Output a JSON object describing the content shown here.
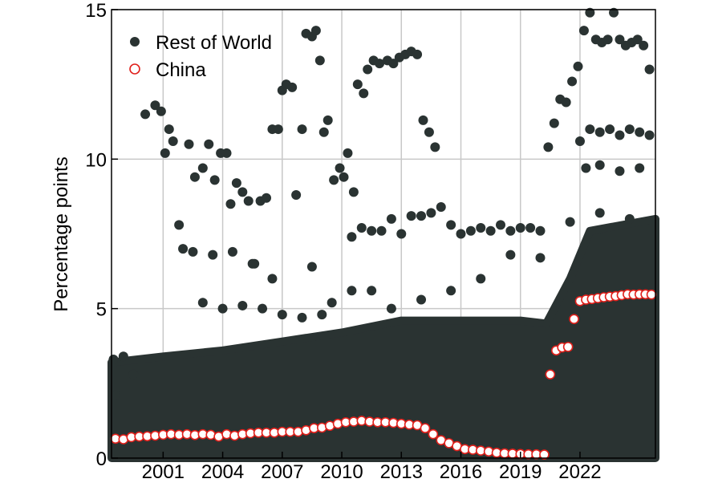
{
  "chart_data": {
    "type": "scatter",
    "title": "",
    "xlabel": "",
    "ylabel": "Percentage points",
    "xlim": [
      1998.4,
      2025.8
    ],
    "ylim": [
      0,
      15
    ],
    "x_ticks": [
      2001,
      2004,
      2007,
      2010,
      2013,
      2016,
      2019,
      2022
    ],
    "x_tick_labels": [
      "2001",
      "2004",
      "2007",
      "2010",
      "2013",
      "2016",
      "2019",
      "2022"
    ],
    "y_ticks": [
      0,
      5,
      10,
      15
    ],
    "y_tick_labels": [
      "0",
      "5",
      "10",
      "15"
    ],
    "grid": true,
    "legend_position": "top-left",
    "series": [
      {
        "name": "Rest of World",
        "marker": "filled-circle",
        "color": "#2a3332",
        "points": [
          [
            1998.5,
            3.3
          ],
          [
            1998.6,
            2.1
          ],
          [
            1999,
            3.4
          ],
          [
            1999.5,
            2.8
          ],
          [
            2000.1,
            11.5
          ],
          [
            2000.6,
            11.8
          ],
          [
            2000.9,
            11.6
          ],
          [
            2001.1,
            10.2
          ],
          [
            2001.3,
            11.0
          ],
          [
            2001.5,
            10.6
          ],
          [
            2001.8,
            7.8
          ],
          [
            2002.0,
            7.0
          ],
          [
            2002.3,
            10.5
          ],
          [
            2002.6,
            9.4
          ],
          [
            2003.0,
            9.7
          ],
          [
            2003.3,
            10.5
          ],
          [
            2003.6,
            9.3
          ],
          [
            2003.9,
            10.2
          ],
          [
            2004.2,
            10.2
          ],
          [
            2004.4,
            8.5
          ],
          [
            2004.7,
            9.2
          ],
          [
            2005.0,
            8.9
          ],
          [
            2005.3,
            8.6
          ],
          [
            2005.6,
            6.5
          ],
          [
            2005.9,
            8.6
          ],
          [
            2006.2,
            8.7
          ],
          [
            2006.5,
            11.0
          ],
          [
            2006.8,
            11.0
          ],
          [
            2007.0,
            12.3
          ],
          [
            2007.2,
            12.5
          ],
          [
            2007.5,
            12.4
          ],
          [
            2007.7,
            8.8
          ],
          [
            2008.0,
            11.0
          ],
          [
            2008.2,
            14.2
          ],
          [
            2008.5,
            14.1
          ],
          [
            2008.7,
            14.3
          ],
          [
            2008.9,
            13.3
          ],
          [
            2009.1,
            10.9
          ],
          [
            2009.3,
            11.3
          ],
          [
            2009.6,
            9.3
          ],
          [
            2009.9,
            9.7
          ],
          [
            2010.1,
            9.4
          ],
          [
            2010.3,
            10.2
          ],
          [
            2010.6,
            8.9
          ],
          [
            2010.8,
            12.5
          ],
          [
            2011.1,
            12.2
          ],
          [
            2011.3,
            13.0
          ],
          [
            2011.6,
            13.3
          ],
          [
            2011.9,
            13.2
          ],
          [
            2012.3,
            13.3
          ],
          [
            2012.6,
            13.2
          ],
          [
            2012.9,
            13.4
          ],
          [
            2013.2,
            13.5
          ],
          [
            2013.5,
            13.6
          ],
          [
            2013.8,
            13.5
          ],
          [
            2014.1,
            11.3
          ],
          [
            2014.4,
            10.9
          ],
          [
            2014.7,
            10.4
          ],
          [
            2010.5,
            7.4
          ],
          [
            2011.0,
            7.7
          ],
          [
            2011.5,
            7.6
          ],
          [
            2012.0,
            7.6
          ],
          [
            2012.5,
            8.0
          ],
          [
            2013.0,
            7.5
          ],
          [
            2013.5,
            8.1
          ],
          [
            2014.0,
            8.1
          ],
          [
            2014.5,
            8.2
          ],
          [
            2015.0,
            8.4
          ],
          [
            2015.5,
            7.8
          ],
          [
            2016.0,
            7.5
          ],
          [
            2016.5,
            7.6
          ],
          [
            2017.0,
            7.7
          ],
          [
            2017.5,
            7.6
          ],
          [
            2018.0,
            7.8
          ],
          [
            2018.5,
            7.6
          ],
          [
            2019.0,
            7.7
          ],
          [
            2019.5,
            7.7
          ],
          [
            2020.0,
            7.6
          ],
          [
            2020.4,
            10.4
          ],
          [
            2020.7,
            11.2
          ],
          [
            2021.0,
            12.0
          ],
          [
            2021.3,
            11.9
          ],
          [
            2021.6,
            12.6
          ],
          [
            2021.9,
            13.1
          ],
          [
            2022.2,
            14.3
          ],
          [
            2022.5,
            14.9
          ],
          [
            2022.8,
            14.0
          ],
          [
            2023.1,
            13.9
          ],
          [
            2023.4,
            14.0
          ],
          [
            2023.7,
            14.9
          ],
          [
            2024.0,
            14.0
          ],
          [
            2024.3,
            13.8
          ],
          [
            2024.6,
            13.9
          ],
          [
            2024.9,
            14.0
          ],
          [
            2025.2,
            13.8
          ],
          [
            2025.5,
            13.0
          ],
          [
            2022.0,
            10.6
          ],
          [
            2022.5,
            11.0
          ],
          [
            2023.0,
            10.9
          ],
          [
            2023.5,
            11.0
          ],
          [
            2024.0,
            10.8
          ],
          [
            2024.5,
            11.0
          ],
          [
            2025.0,
            10.9
          ],
          [
            2025.5,
            10.8
          ],
          [
            2022.3,
            9.7
          ],
          [
            2023.0,
            9.8
          ],
          [
            2024.0,
            9.6
          ],
          [
            2025.0,
            9.7
          ],
          [
            2002.5,
            6.9
          ],
          [
            2003.5,
            6.8
          ],
          [
            2004.5,
            6.9
          ],
          [
            2005.5,
            6.5
          ],
          [
            2006.5,
            6.0
          ],
          [
            2008.5,
            6.4
          ],
          [
            2009.5,
            5.2
          ],
          [
            2010.5,
            5.6
          ],
          [
            2011.5,
            5.6
          ],
          [
            2003.0,
            5.2
          ],
          [
            2004.0,
            5.0
          ],
          [
            2005.0,
            5.1
          ],
          [
            2006.0,
            5.0
          ],
          [
            2007.0,
            4.8
          ],
          [
            2008.0,
            4.7
          ],
          [
            2009.0,
            4.8
          ],
          [
            2012.5,
            5.0
          ],
          [
            2014.0,
            5.3
          ],
          [
            2015.5,
            5.6
          ],
          [
            2017.0,
            6.0
          ],
          [
            2018.5,
            6.8
          ],
          [
            2020.0,
            6.7
          ],
          [
            2021.5,
            7.9
          ],
          [
            2023.0,
            8.2
          ],
          [
            2024.5,
            8.0
          ]
        ]
      },
      {
        "name": "China",
        "marker": "open-circle",
        "color": "#e0201b",
        "points": [
          [
            1998.6,
            0.65
          ],
          [
            1999.0,
            0.63
          ],
          [
            1999.4,
            0.7
          ],
          [
            1999.8,
            0.72
          ],
          [
            2000.2,
            0.73
          ],
          [
            2000.6,
            0.75
          ],
          [
            2001.0,
            0.78
          ],
          [
            2001.4,
            0.8
          ],
          [
            2001.8,
            0.78
          ],
          [
            2002.2,
            0.8
          ],
          [
            2002.6,
            0.77
          ],
          [
            2003.0,
            0.8
          ],
          [
            2003.4,
            0.78
          ],
          [
            2003.8,
            0.72
          ],
          [
            2004.2,
            0.8
          ],
          [
            2004.6,
            0.75
          ],
          [
            2005.0,
            0.8
          ],
          [
            2005.4,
            0.83
          ],
          [
            2005.8,
            0.85
          ],
          [
            2006.2,
            0.85
          ],
          [
            2006.6,
            0.85
          ],
          [
            2007.0,
            0.88
          ],
          [
            2007.4,
            0.88
          ],
          [
            2007.8,
            0.88
          ],
          [
            2008.2,
            0.93
          ],
          [
            2008.6,
            1.0
          ],
          [
            2009.0,
            1.02
          ],
          [
            2009.4,
            1.08
          ],
          [
            2009.8,
            1.15
          ],
          [
            2010.2,
            1.2
          ],
          [
            2010.6,
            1.22
          ],
          [
            2011.0,
            1.25
          ],
          [
            2011.4,
            1.22
          ],
          [
            2011.8,
            1.2
          ],
          [
            2012.2,
            1.2
          ],
          [
            2012.6,
            1.18
          ],
          [
            2013.0,
            1.15
          ],
          [
            2013.4,
            1.12
          ],
          [
            2013.8,
            1.1
          ],
          [
            2014.2,
            1.0
          ],
          [
            2014.6,
            0.8
          ],
          [
            2015.0,
            0.6
          ],
          [
            2015.4,
            0.5
          ],
          [
            2015.8,
            0.4
          ],
          [
            2016.2,
            0.3
          ],
          [
            2016.6,
            0.28
          ],
          [
            2017.0,
            0.25
          ],
          [
            2017.4,
            0.22
          ],
          [
            2017.8,
            0.18
          ],
          [
            2018.2,
            0.16
          ],
          [
            2018.6,
            0.15
          ],
          [
            2019.0,
            0.14
          ],
          [
            2019.4,
            0.13
          ],
          [
            2019.8,
            0.13
          ],
          [
            2020.2,
            0.12
          ],
          [
            2020.5,
            2.8
          ],
          [
            2020.8,
            3.6
          ],
          [
            2021.1,
            3.7
          ],
          [
            2021.4,
            3.72
          ],
          [
            2021.7,
            4.65
          ],
          [
            2022.0,
            5.25
          ],
          [
            2022.3,
            5.3
          ],
          [
            2022.6,
            5.32
          ],
          [
            2022.9,
            5.35
          ],
          [
            2023.2,
            5.38
          ],
          [
            2023.5,
            5.4
          ],
          [
            2023.8,
            5.42
          ],
          [
            2024.1,
            5.45
          ],
          [
            2024.4,
            5.48
          ],
          [
            2024.7,
            5.47
          ],
          [
            2025.0,
            5.48
          ],
          [
            2025.3,
            5.48
          ],
          [
            2025.6,
            5.47
          ]
        ]
      }
    ],
    "band": {
      "name": "Rest of World dense band",
      "color": "#2a3332",
      "x": [
        1998.4,
        2001,
        2004,
        2007,
        2010,
        2013,
        2016,
        2019,
        2020.3,
        2021.5,
        2022.5,
        2025.8
      ],
      "lower": [
        0.0,
        0.0,
        0.0,
        0.0,
        0.0,
        0.0,
        0.0,
        0.0,
        0.0,
        0.0,
        0.0,
        0.0
      ],
      "upper": [
        3.2,
        3.4,
        3.6,
        3.9,
        4.2,
        4.6,
        4.6,
        4.6,
        4.5,
        6.0,
        7.6,
        8.0
      ]
    }
  }
}
